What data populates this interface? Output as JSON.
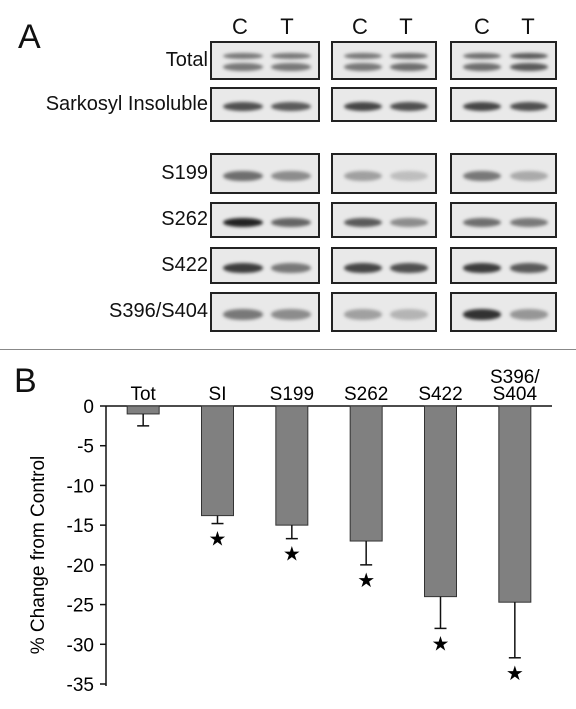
{
  "panelA": {
    "letter": "A",
    "lanes": [
      "C",
      "T",
      "C",
      "T",
      "C",
      "T"
    ],
    "rows": [
      "Total",
      "Sarkosyl Insoluble",
      "S199",
      "S262",
      "S422",
      "S396/S404"
    ]
  },
  "panelB": {
    "letter": "B",
    "ylabel": "% Change from Control"
  },
  "chart_data": {
    "type": "bar",
    "categories": [
      "Tot",
      "SI",
      "S199",
      "S262",
      "S422",
      "S396/ S404"
    ],
    "values": [
      -1,
      -13.8,
      -15,
      -17,
      -24,
      -24.7
    ],
    "error": [
      1.5,
      1,
      1.7,
      3,
      4,
      7
    ],
    "significant": [
      false,
      true,
      true,
      true,
      true,
      true
    ],
    "significance_marker": "★",
    "ylim": [
      -35,
      0
    ],
    "yticks": [
      "0",
      "-5",
      "-10",
      "-15",
      "-20",
      "-25",
      "-30",
      "-35"
    ],
    "bar_color": "#808080"
  }
}
